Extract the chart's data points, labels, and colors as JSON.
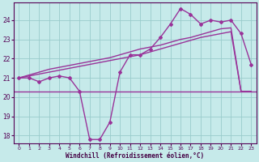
{
  "xlabel": "Windchill (Refroidissement éolien,°C)",
  "bg_color": "#c6eaea",
  "line_color": "#993399",
  "grid_color": "#99cccc",
  "hours": [
    0,
    1,
    2,
    3,
    4,
    5,
    6,
    7,
    8,
    9,
    10,
    11,
    12,
    13,
    14,
    15,
    16,
    17,
    18,
    19,
    20,
    21,
    22,
    23
  ],
  "windchill": [
    21.0,
    21.0,
    20.8,
    21.0,
    21.1,
    21.0,
    20.3,
    17.8,
    17.8,
    18.7,
    21.3,
    22.2,
    22.2,
    22.5,
    23.1,
    23.8,
    24.6,
    24.3,
    23.8,
    24.0,
    23.9,
    24.0,
    23.3,
    21.7
  ],
  "trend1": [
    21.0,
    21.1,
    21.2,
    21.3,
    21.4,
    21.5,
    21.6,
    21.7,
    21.8,
    21.9,
    22.0,
    22.1,
    22.2,
    22.35,
    22.5,
    22.65,
    22.8,
    22.95,
    23.1,
    23.2,
    23.3,
    23.4,
    20.3,
    20.3
  ],
  "trend2": [
    21.0,
    21.15,
    21.3,
    21.45,
    21.55,
    21.65,
    21.75,
    21.85,
    21.95,
    22.05,
    22.2,
    22.35,
    22.5,
    22.6,
    22.7,
    22.85,
    23.0,
    23.1,
    23.25,
    23.4,
    23.55,
    23.6,
    20.3,
    20.3
  ],
  "horiz_y": 20.3,
  "ylim": [
    17.6,
    24.9
  ],
  "yticks": [
    18,
    19,
    20,
    21,
    22,
    23,
    24
  ],
  "xlim": [
    -0.5,
    23.5
  ],
  "xticks": [
    0,
    1,
    2,
    3,
    4,
    5,
    6,
    7,
    8,
    9,
    10,
    11,
    12,
    13,
    14,
    15,
    16,
    17,
    18,
    19,
    20,
    21,
    22,
    23
  ],
  "xticklabels": [
    "0",
    "1",
    "2",
    "3",
    "4",
    "5",
    "6",
    "7",
    "8",
    "9",
    "10",
    "11",
    "12",
    "13",
    "14",
    "15",
    "16",
    "17",
    "18",
    "19",
    "20",
    "21",
    "22",
    "23"
  ]
}
